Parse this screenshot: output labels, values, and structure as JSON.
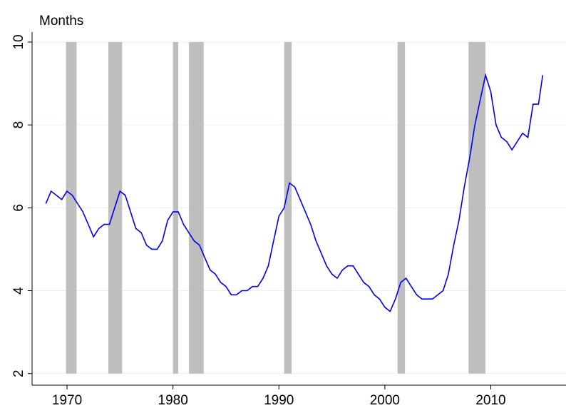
{
  "chart_data": {
    "type": "line",
    "ylabel": "Months",
    "x": [
      1968.0,
      1968.5,
      1969.0,
      1969.5,
      1970.0,
      1970.5,
      1971.0,
      1971.5,
      1972.0,
      1972.5,
      1973.0,
      1973.5,
      1974.0,
      1974.5,
      1975.0,
      1975.5,
      1976.0,
      1976.5,
      1977.0,
      1977.5,
      1978.0,
      1978.5,
      1979.0,
      1979.5,
      1980.0,
      1980.5,
      1981.0,
      1981.5,
      1982.0,
      1982.5,
      1983.0,
      1983.5,
      1984.0,
      1984.5,
      1985.0,
      1985.5,
      1986.0,
      1986.5,
      1987.0,
      1987.5,
      1988.0,
      1988.5,
      1989.0,
      1989.5,
      1990.0,
      1990.5,
      1991.0,
      1991.5,
      1992.0,
      1992.5,
      1993.0,
      1993.5,
      1994.0,
      1994.5,
      1995.0,
      1995.5,
      1996.0,
      1996.5,
      1997.0,
      1997.5,
      1998.0,
      1998.5,
      1999.0,
      1999.5,
      2000.0,
      2000.5,
      2001.0,
      2001.5,
      2002.0,
      2002.5,
      2003.0,
      2003.5,
      2004.0,
      2004.5,
      2005.0,
      2005.5,
      2006.0,
      2006.5,
      2007.0,
      2007.5,
      2008.0,
      2008.5,
      2009.0,
      2009.5,
      2010.0,
      2010.5,
      2011.0,
      2011.5,
      2012.0,
      2012.5,
      2013.0,
      2013.5,
      2014.0,
      2014.5,
      2014.9
    ],
    "series": [
      {
        "color": "#0000ee",
        "values": [
          6.1,
          6.4,
          6.3,
          6.2,
          6.4,
          6.3,
          6.1,
          5.9,
          5.6,
          5.3,
          5.5,
          5.6,
          5.6,
          6.0,
          6.4,
          6.3,
          5.9,
          5.5,
          5.4,
          5.1,
          5.0,
          5.0,
          5.2,
          5.7,
          5.9,
          5.9,
          5.6,
          5.4,
          5.2,
          5.1,
          4.8,
          4.5,
          4.4,
          4.2,
          4.1,
          3.9,
          3.9,
          4.0,
          4.0,
          4.1,
          4.1,
          4.3,
          4.6,
          5.2,
          5.8,
          6.0,
          6.6,
          6.5,
          6.2,
          5.9,
          5.6,
          5.2,
          4.9,
          4.6,
          4.4,
          4.3,
          4.5,
          4.6,
          4.6,
          4.4,
          4.2,
          4.1,
          3.9,
          3.8,
          3.6,
          3.5,
          3.8,
          4.2,
          4.3,
          4.1,
          3.9,
          3.8,
          3.8,
          3.8,
          3.9,
          4.0,
          4.4,
          5.1,
          5.7,
          6.5,
          7.2,
          8.0,
          8.6,
          9.2,
          8.8,
          8.0,
          7.7,
          7.6,
          7.4,
          7.6,
          7.8,
          7.7,
          8.5,
          8.5,
          9.2
        ]
      }
    ],
    "recessions": [
      [
        1969.9,
        1970.9
      ],
      [
        1973.9,
        1975.2
      ],
      [
        1980.0,
        1980.5
      ],
      [
        1981.5,
        1982.9
      ],
      [
        1990.5,
        1991.2
      ],
      [
        2001.2,
        2001.9
      ],
      [
        2007.9,
        2009.5
      ]
    ],
    "recession_color": "#bebebe",
    "xlim": [
      1966.7,
      2017.1
    ],
    "xticks": [
      1970,
      1980,
      1990,
      2000,
      2010
    ],
    "ylim": [
      1.72,
      10.24
    ],
    "yticks": [
      2,
      4,
      6,
      8,
      10
    ],
    "grid": true
  }
}
